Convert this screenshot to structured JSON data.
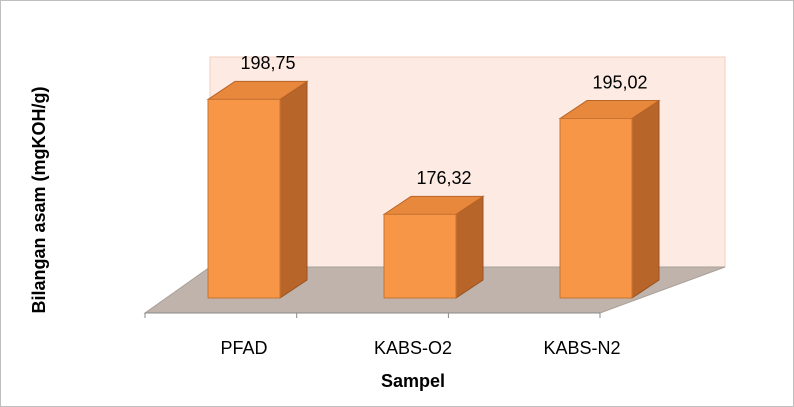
{
  "chart_data": {
    "type": "bar3d",
    "categories": [
      "PFAD",
      "KABS-O2",
      "KABS-N2"
    ],
    "values": [
      198.75,
      176.32,
      195.02
    ],
    "value_labels": [
      "198,75",
      "176,32",
      "195,02"
    ],
    "color": "#f79646",
    "ylim": [
      160,
      200
    ],
    "ylabel": "Bilangan asam (mgKOH/g)",
    "xlabel": "Sampel"
  }
}
